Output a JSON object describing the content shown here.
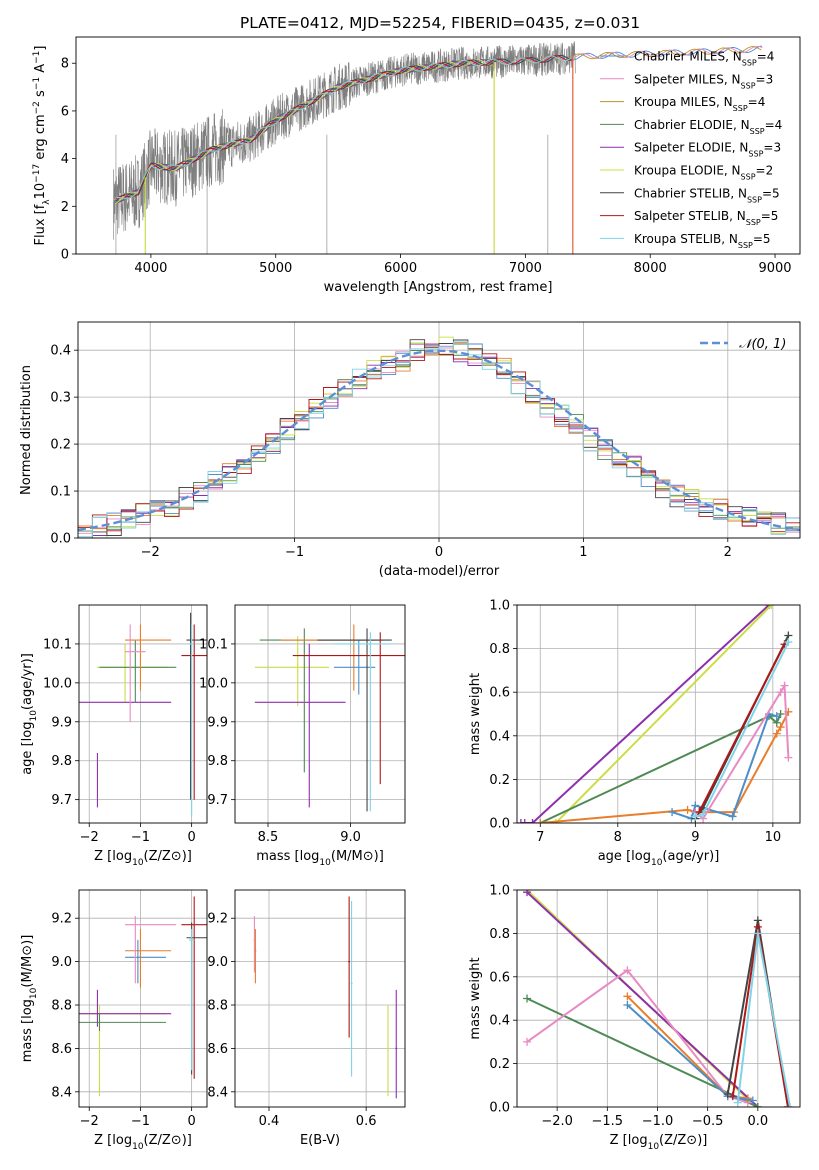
{
  "figure": {
    "title": "PLATE=0412, MJD=52254, FIBERID=0435, z=0.031"
  },
  "colors": {
    "Chabrier MILES": "#4c8ec7",
    "Salpeter MILES": "#e88ac4",
    "Kroupa MILES": "#b8962a",
    "Chabrier ELODIE": "#4f8a55",
    "Salpeter ELODIE": "#8e2fae",
    "Kroupa ELODIE": "#ccdd44",
    "Chabrier STELIB": "#444444",
    "Salpeter STELIB": "#b01818",
    "Kroupa STELIB": "#7fd4e6",
    "MILES orange": "#e87d2c",
    "data": "#7f7f7f",
    "normal": "#5b8fd6"
  },
  "chart_data": [
    {
      "id": "spectrum",
      "type": "line",
      "xlabel": "wavelength [Angstrom, rest frame]",
      "ylabel_parts": [
        "Flux [f",
        "λ",
        "10",
        "−17",
        " erg cm",
        "−2",
        " s",
        "−1",
        " A",
        "−1",
        "]"
      ],
      "xlim": [
        3400,
        9200
      ],
      "ylim": [
        0,
        9.1
      ],
      "xticks": [
        "4000",
        "5000",
        "6000",
        "7000",
        "8000",
        "9000"
      ],
      "yticks": [
        "0",
        "2",
        "4",
        "6",
        "8"
      ],
      "legend_position": "right",
      "legend": [
        {
          "name": "Chabrier MILES",
          "n": "4"
        },
        {
          "name": "Salpeter MILES",
          "n": "3"
        },
        {
          "name": "Kroupa MILES",
          "n": "4"
        },
        {
          "name": "Chabrier ELODIE",
          "n": "4"
        },
        {
          "name": "Salpeter ELODIE",
          "n": "3"
        },
        {
          "name": "Kroupa ELODIE",
          "n": "2"
        },
        {
          "name": "Chabrier STELIB",
          "n": "5"
        },
        {
          "name": "Salpeter STELIB",
          "n": "5"
        },
        {
          "name": "Kroupa STELIB",
          "n": "5"
        }
      ],
      "legend_sub": "SSP",
      "continuum_model": {
        "x": [
          3700,
          3900,
          4000,
          4200,
          4500,
          4800,
          5000,
          5500,
          6000,
          6500,
          7000,
          7500,
          8000,
          8500,
          8900
        ],
        "y": [
          2.2,
          2.6,
          3.7,
          3.6,
          4.4,
          4.8,
          5.6,
          7.0,
          7.7,
          8.0,
          8.1,
          8.3,
          8.4,
          8.5,
          8.6
        ]
      },
      "data_range": [
        3700,
        7400
      ],
      "model_drops": [
        {
          "x": 3955,
          "y": 0
        },
        {
          "x": 6750,
          "y": 0
        },
        {
          "x": 7380,
          "y": 0
        }
      ]
    },
    {
      "id": "residual-histogram",
      "type": "bar",
      "xlabel": "(data-model)/error",
      "ylabel": "Normed distribution",
      "xlim": [
        -2.5,
        2.5
      ],
      "ylim": [
        0,
        0.46
      ],
      "xticks": [
        "−2",
        "−1",
        "0",
        "1",
        "2"
      ],
      "yticks": [
        "0.0",
        "0.1",
        "0.2",
        "0.3",
        "0.4"
      ],
      "legend": "𝒩(0, 1)",
      "legend_position": "top-right",
      "bin_width": 0.1,
      "bin_centers_start": -2.45,
      "base_hist": [
        0.02,
        0.025,
        0.03,
        0.04,
        0.05,
        0.06,
        0.07,
        0.085,
        0.1,
        0.12,
        0.14,
        0.16,
        0.18,
        0.2,
        0.23,
        0.25,
        0.28,
        0.3,
        0.32,
        0.34,
        0.36,
        0.37,
        0.38,
        0.4,
        0.41,
        0.41,
        0.4,
        0.39,
        0.38,
        0.36,
        0.33,
        0.31,
        0.28,
        0.26,
        0.24,
        0.21,
        0.19,
        0.17,
        0.15,
        0.13,
        0.11,
        0.09,
        0.08,
        0.07,
        0.06,
        0.05,
        0.04,
        0.035,
        0.03,
        0.025
      ]
    },
    {
      "id": "age-vs-Z",
      "type": "scatter",
      "xlabel": "Z [log10(Z/Z⊙)]",
      "ylabel": "age  [log10(age/yr)]",
      "xlim": [
        -2.2,
        0.3
      ],
      "ylim": [
        9.64,
        10.2
      ],
      "xticks": [
        "−2",
        "−1",
        "0"
      ],
      "yticks": [
        "9.7",
        "9.8",
        "9.9",
        "10.0",
        "10.1"
      ],
      "points": [
        {
          "s": "Kroupa ELODIE",
          "x": -1.3,
          "y": 10.04,
          "xe": [
            -1.85,
            -0.45
          ],
          "ye": [
            9.95,
            10.1
          ]
        },
        {
          "s": "Salpeter ELODIE",
          "x": -1.84,
          "y": 9.95,
          "xe": [
            -2.3,
            -0.4
          ],
          "ye": [
            9.68,
            9.82
          ]
        },
        {
          "s": "Chabrier ELODIE",
          "x": -1.1,
          "y": 10.04,
          "xe": [
            -1.8,
            -0.3
          ],
          "ye": [
            9.95,
            10.11
          ]
        },
        {
          "s": "MILES orange",
          "x": -1.0,
          "y": 10.11,
          "xe": [
            -1.3,
            -0.4
          ],
          "ye": [
            9.98,
            10.15
          ]
        },
        {
          "s": "Salpeter MILES",
          "x": -1.2,
          "y": 10.08,
          "xe": [
            -1.3,
            -0.9
          ],
          "ye": [
            9.9,
            10.15
          ]
        },
        {
          "s": "Chabrier STELIB",
          "x": -0.02,
          "y": 10.11,
          "xe": [
            -0.1,
            0.3
          ],
          "ye": [
            9.7,
            10.18
          ]
        },
        {
          "s": "Salpeter STELIB",
          "x": 0.05,
          "y": 10.07,
          "xe": [
            -0.2,
            0.3
          ],
          "ye": [
            9.7,
            10.15
          ]
        },
        {
          "s": "Kroupa STELIB",
          "x": 0.0,
          "y": 10.1,
          "xe": [
            -0.05,
            0.05
          ],
          "ye": [
            9.66,
            10.15
          ]
        }
      ]
    },
    {
      "id": "age-vs-mass",
      "type": "scatter",
      "xlabel": "mass [log10(M/M⊙)]",
      "ylabel": "",
      "xlim": [
        8.3,
        9.33
      ],
      "ylim": [
        9.64,
        10.2
      ],
      "xticks": [
        "8.5",
        "9.0"
      ],
      "yticks": [
        "9.7",
        "9.8",
        "9.9",
        "10.0",
        "10.1"
      ],
      "points": [
        {
          "s": "Kroupa ELODIE",
          "x": 8.68,
          "y": 10.04,
          "xe": [
            8.42,
            8.87
          ],
          "ye": [
            9.94,
            10.12
          ]
        },
        {
          "s": "Salpeter ELODIE",
          "x": 8.75,
          "y": 9.95,
          "xe": [
            8.42,
            8.97
          ],
          "ye": [
            9.68,
            10.1
          ]
        },
        {
          "s": "Chabrier ELODIE",
          "x": 8.72,
          "y": 10.11,
          "xe": [
            8.45,
            9.15
          ],
          "ye": [
            9.77,
            10.14
          ]
        },
        {
          "s": "MILES orange",
          "x": 9.02,
          "y": 10.11,
          "xe": [
            8.58,
            9.2
          ],
          "ye": [
            9.98,
            10.15
          ]
        },
        {
          "s": "Chabrier MILES",
          "x": 9.05,
          "y": 10.04,
          "xe": [
            8.9,
            9.15
          ],
          "ye": [
            9.97,
            10.11
          ]
        },
        {
          "s": "Chabrier STELIB",
          "x": 9.1,
          "y": 10.11,
          "xe": [
            8.8,
            9.25
          ],
          "ye": [
            9.67,
            10.14
          ]
        },
        {
          "s": "Salpeter STELIB",
          "x": 9.18,
          "y": 10.07,
          "xe": [
            8.65,
            9.35
          ],
          "ye": [
            9.74,
            10.13
          ]
        },
        {
          "s": "Kroupa STELIB",
          "x": 9.12,
          "y": 10.1,
          "xe": [
            8.9,
            9.25
          ],
          "ye": [
            9.67,
            10.13
          ]
        }
      ]
    },
    {
      "id": "weight-vs-age",
      "type": "line",
      "xlabel": "age  [log10(age/yr)]",
      "ylabel": "mass weight",
      "xlim": [
        6.7,
        10.35
      ],
      "ylim": [
        0,
        1.0
      ],
      "xticks": [
        "7",
        "8",
        "9",
        "10"
      ],
      "yticks": [
        "0.0",
        "0.2",
        "0.4",
        "0.6",
        "0.8",
        "1.0"
      ],
      "series": [
        {
          "s": "Salpeter ELODIE",
          "x": [
            6.75,
            6.8,
            6.9,
            9.95
          ],
          "y": [
            0.0,
            0.0,
            0.0,
            1.0
          ]
        },
        {
          "s": "Kroupa ELODIE",
          "x": [
            7.2,
            9.98
          ],
          "y": [
            0.0,
            1.0
          ]
        },
        {
          "s": "Chabrier ELODIE",
          "x": [
            7.0,
            9.95,
            10.05,
            10.1
          ],
          "y": [
            0.0,
            0.49,
            0.46,
            0.5
          ]
        },
        {
          "s": "MILES orange",
          "x": [
            7.0,
            8.9,
            9.0,
            9.5,
            10.05,
            10.1,
            10.2
          ],
          "y": [
            0.0,
            0.06,
            0.05,
            0.05,
            0.41,
            0.44,
            0.51
          ]
        },
        {
          "s": "Chabrier MILES",
          "x": [
            8.7,
            8.95,
            9.0,
            9.48,
            9.95,
            10.05
          ],
          "y": [
            0.05,
            0.02,
            0.08,
            0.03,
            0.5,
            0.49
          ]
        },
        {
          "s": "Salpeter MILES",
          "x": [
            9.0,
            9.1,
            10.1,
            10.15,
            10.2
          ],
          "y": [
            0.05,
            0.02,
            0.6,
            0.63,
            0.3
          ]
        },
        {
          "s": "Chabrier STELIB",
          "x": [
            9.0,
            9.1,
            10.2
          ],
          "y": [
            0.02,
            0.07,
            0.86
          ]
        },
        {
          "s": "Salpeter STELIB",
          "x": [
            9.05,
            10.15
          ],
          "y": [
            0.05,
            0.82
          ]
        },
        {
          "s": "Kroupa STELIB",
          "x": [
            9.0,
            9.1,
            10.2
          ],
          "y": [
            0.03,
            0.04,
            0.83
          ]
        }
      ]
    },
    {
      "id": "mass-vs-Z",
      "type": "scatter",
      "xlabel": "Z [log10(Z/Z⊙)]",
      "ylabel": "mass [log10(M/M⊙)]",
      "xlim": [
        -2.2,
        0.3
      ],
      "ylim": [
        8.33,
        9.33
      ],
      "xticks": [
        "−2",
        "−1",
        "0"
      ],
      "yticks": [
        "8.4",
        "8.6",
        "8.8",
        "9.0",
        "9.2"
      ],
      "points": [
        {
          "s": "Kroupa ELODIE",
          "x": -1.8,
          "y": 8.76,
          "xe": [
            -2.3,
            -0.5
          ],
          "ye": [
            8.38,
            8.8
          ]
        },
        {
          "s": "Salpeter ELODIE",
          "x": -1.84,
          "y": 8.76,
          "xe": [
            -2.3,
            -0.4
          ],
          "ye": [
            8.7,
            8.87
          ]
        },
        {
          "s": "Chabrier ELODIE",
          "x": -1.8,
          "y": 8.72,
          "xe": [
            -2.3,
            -0.5
          ],
          "ye": [
            8.68,
            8.76
          ]
        },
        {
          "s": "MILES orange",
          "x": -1.0,
          "y": 9.05,
          "xe": [
            -1.3,
            -0.4
          ],
          "ye": [
            8.88,
            9.15
          ]
        },
        {
          "s": "Chabrier MILES",
          "x": -1.05,
          "y": 9.02,
          "xe": [
            -1.3,
            -0.5
          ],
          "ye": [
            8.9,
            9.1
          ]
        },
        {
          "s": "Salpeter MILES",
          "x": -1.1,
          "y": 9.17,
          "xe": [
            -1.3,
            -0.3
          ],
          "ye": [
            8.9,
            9.21
          ]
        },
        {
          "s": "Chabrier STELIB",
          "x": 0.0,
          "y": 9.11,
          "xe": [
            -0.1,
            0.3
          ],
          "ye": [
            8.48,
            9.18
          ]
        },
        {
          "s": "Salpeter STELIB",
          "x": 0.05,
          "y": 9.17,
          "xe": [
            -0.2,
            0.3
          ],
          "ye": [
            8.46,
            9.3
          ]
        },
        {
          "s": "Kroupa STELIB",
          "x": 0.0,
          "y": 9.1,
          "xe": [
            -0.05,
            0.05
          ],
          "ye": [
            8.5,
            9.15
          ]
        }
      ]
    },
    {
      "id": "mass-vs-EBV",
      "type": "scatter",
      "xlabel": "E(B-V)",
      "ylabel": "",
      "xlim": [
        0.33,
        0.68
      ],
      "ylim": [
        8.33,
        9.33
      ],
      "xticks": [
        "0.4",
        "0.6"
      ],
      "yticks": [
        "8.4",
        "8.6",
        "8.8",
        "9.0",
        "9.2"
      ],
      "points": [
        {
          "s": "Salpeter MILES",
          "x": 0.37,
          "y": 9.1,
          "xe": [
            0.368,
            0.372
          ],
          "ye": [
            8.95,
            9.21
          ]
        },
        {
          "s": "MILES orange",
          "x": 0.372,
          "y": 9.05,
          "xe": [
            0.37,
            0.374
          ],
          "ye": [
            8.9,
            9.15
          ]
        },
        {
          "s": "Salpeter STELIB",
          "x": 0.565,
          "y": 9.0,
          "xe": [
            0.563,
            0.567
          ],
          "ye": [
            8.65,
            9.3
          ]
        },
        {
          "s": "Kroupa STELIB",
          "x": 0.57,
          "y": 8.9,
          "xe": [
            0.568,
            0.572
          ],
          "ye": [
            8.47,
            9.28
          ]
        },
        {
          "s": "Kroupa ELODIE",
          "x": 0.645,
          "y": 8.6,
          "xe": [
            0.643,
            0.647
          ],
          "ye": [
            8.38,
            8.8
          ]
        },
        {
          "s": "Salpeter ELODIE",
          "x": 0.662,
          "y": 8.6,
          "xe": [
            0.66,
            0.664
          ],
          "ye": [
            8.37,
            8.87
          ]
        }
      ]
    },
    {
      "id": "weight-vs-Z",
      "type": "line",
      "xlabel": "Z [log10(Z/Z⊙)]",
      "ylabel": "mass weight",
      "xlim": [
        -2.4,
        0.42
      ],
      "ylim": [
        0,
        1.0
      ],
      "xticks": [
        "−2.0",
        "−1.5",
        "−1.0",
        "−0.5",
        "0.0"
      ],
      "yticks": [
        "0.0",
        "0.2",
        "0.4",
        "0.6",
        "0.8",
        "1.0"
      ],
      "series": [
        {
          "s": "Kroupa ELODIE",
          "x": [
            -2.3,
            -0.02,
            0.0
          ],
          "y": [
            1.0,
            0.0,
            0.0
          ]
        },
        {
          "s": "Salpeter ELODIE",
          "x": [
            -2.3,
            0.0
          ],
          "y": [
            0.99,
            0.0
          ]
        },
        {
          "s": "Chabrier ELODIE",
          "x": [
            -2.3,
            0.0
          ],
          "y": [
            0.5,
            0.0
          ]
        },
        {
          "s": "Salpeter MILES",
          "x": [
            -2.3,
            -1.3,
            -0.3,
            -0.1
          ],
          "y": [
            0.3,
            0.63,
            0.05,
            0.02
          ]
        },
        {
          "s": "MILES orange",
          "x": [
            -1.3,
            -0.3,
            -0.1
          ],
          "y": [
            0.51,
            0.05,
            0.04
          ]
        },
        {
          "s": "Chabrier MILES",
          "x": [
            -1.3,
            -0.3,
            -0.05
          ],
          "y": [
            0.47,
            0.05,
            0.03
          ]
        },
        {
          "s": "Chabrier STELIB",
          "x": [
            -0.3,
            0.0,
            0.3
          ],
          "y": [
            0.06,
            0.86,
            0.0
          ]
        },
        {
          "s": "Salpeter STELIB",
          "x": [
            -0.25,
            0.0,
            0.3
          ],
          "y": [
            0.05,
            0.83,
            0.0
          ]
        },
        {
          "s": "Kroupa STELIB",
          "x": [
            -0.2,
            0.0,
            0.32
          ],
          "y": [
            0.02,
            0.8,
            0.0
          ]
        }
      ]
    }
  ]
}
